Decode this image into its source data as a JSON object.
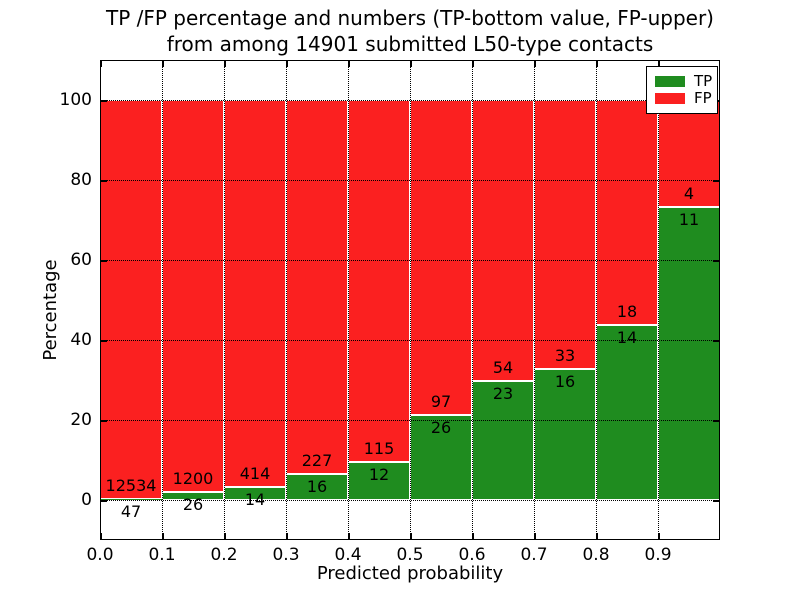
{
  "figure": {
    "title_line1": "TP /FP percentage and numbers (TP-bottom value, FP-upper)",
    "title_line2": "from among 14901 submitted L50-type contacts"
  },
  "chart_data": {
    "type": "bar",
    "stacked": true,
    "normalized_to_percent": true,
    "title": "TP /FP percentage and numbers (TP-bottom value, FP-upper) from among 14901 submitted L50-type contacts",
    "xlabel": "Predicted probability",
    "ylabel": "Percentage",
    "bins": [
      0.0,
      0.1,
      0.2,
      0.3,
      0.4,
      0.5,
      0.6,
      0.7,
      0.8,
      0.9
    ],
    "bin_width": 0.1,
    "series": [
      {
        "name": "TP",
        "color": "#1f8c1f",
        "counts": [
          47,
          26,
          14,
          16,
          12,
          26,
          23,
          16,
          14,
          11
        ]
      },
      {
        "name": "FP",
        "color": "#fb2020",
        "counts": [
          12534,
          1200,
          414,
          227,
          115,
          97,
          54,
          33,
          18,
          4
        ]
      }
    ],
    "tp_percent": [
      0.37,
      2.12,
      3.27,
      6.58,
      9.45,
      21.14,
      29.87,
      32.65,
      43.75,
      73.33
    ],
    "xlim": [
      0.0,
      1.0
    ],
    "ylim": [
      -10,
      110
    ],
    "xticks": [
      "0.0",
      "0.1",
      "0.2",
      "0.3",
      "0.4",
      "0.5",
      "0.6",
      "0.7",
      "0.8",
      "0.9"
    ],
    "yticks": [
      0,
      20,
      40,
      60,
      80,
      100
    ],
    "grid": "dotted",
    "bar_edge_color": "#ffffff",
    "legend": {
      "position": "upper right",
      "entries": [
        "TP",
        "FP"
      ]
    }
  }
}
